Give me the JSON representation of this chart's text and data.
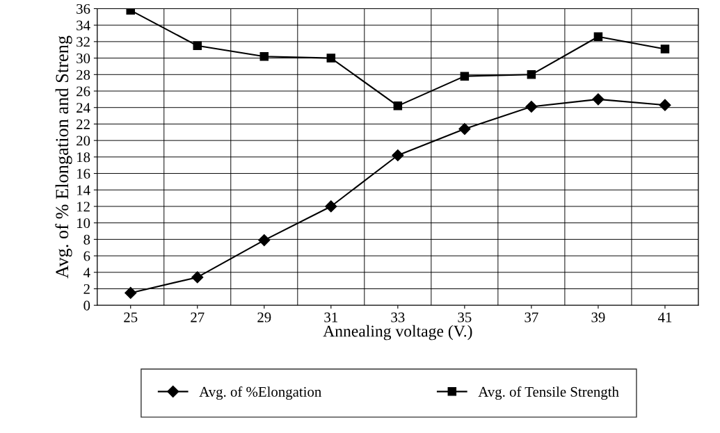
{
  "chart_data": {
    "type": "line",
    "xlabel": "Annealing voltage (V.)",
    "ylabel": "Avg. of % Elongation and Streng",
    "categories": [
      "25",
      "27",
      "29",
      "31",
      "33",
      "35",
      "37",
      "39",
      "41"
    ],
    "series": [
      {
        "name": "Avg. of %Elongation",
        "color": "#000000",
        "marker": "diamond",
        "values": [
          1.5,
          3.4,
          7.9,
          12.0,
          18.2,
          21.4,
          24.1,
          25.0,
          24.3
        ]
      },
      {
        "name": "Avg. of Tensile Strength",
        "color": "#000000",
        "marker": "square",
        "values": [
          35.8,
          31.5,
          30.2,
          30.0,
          24.2,
          27.8,
          28.0,
          32.6,
          31.1
        ]
      }
    ],
    "ylim": [
      0,
      36
    ],
    "yticks": [
      0,
      2,
      4,
      6,
      8,
      10,
      12,
      14,
      16,
      18,
      20,
      22,
      24,
      26,
      28,
      30,
      32,
      34,
      36
    ],
    "grid": true,
    "legend": "bottom",
    "line_style": "solid"
  }
}
